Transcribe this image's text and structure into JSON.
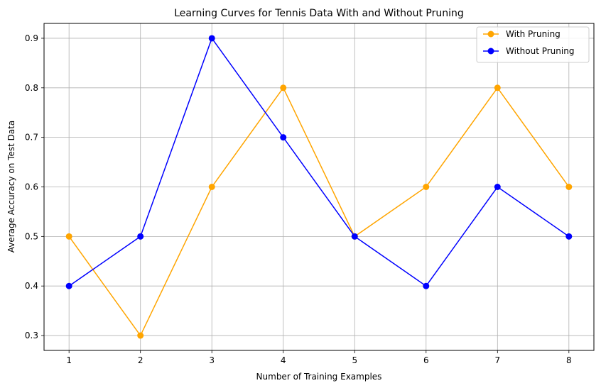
{
  "chart_data": {
    "type": "line",
    "title": "Learning Curves for Tennis Data With and Without Pruning",
    "xlabel": "Number of Training Examples",
    "ylabel": "Average Accuracy on Test Data",
    "x": [
      1,
      2,
      3,
      4,
      5,
      6,
      7,
      8
    ],
    "xlim": [
      0.65,
      8.35
    ],
    "ylim": [
      0.27,
      0.93
    ],
    "xticks": [
      "1",
      "2",
      "3",
      "4",
      "5",
      "6",
      "7",
      "8"
    ],
    "yticks": [
      "0.3",
      "0.4",
      "0.5",
      "0.6",
      "0.7",
      "0.8",
      "0.9"
    ],
    "grid": true,
    "legend_position": "top-right",
    "series": [
      {
        "name": "With Pruning",
        "color": "#ffa500",
        "marker": "circle",
        "values": [
          0.5,
          0.3,
          0.6,
          0.8,
          0.5,
          0.6,
          0.8,
          0.6
        ]
      },
      {
        "name": "Without Pruning",
        "color": "#0000ff",
        "marker": "circle",
        "values": [
          0.4,
          0.5,
          0.9,
          0.7,
          0.5,
          0.4,
          0.6,
          0.5
        ]
      }
    ]
  }
}
